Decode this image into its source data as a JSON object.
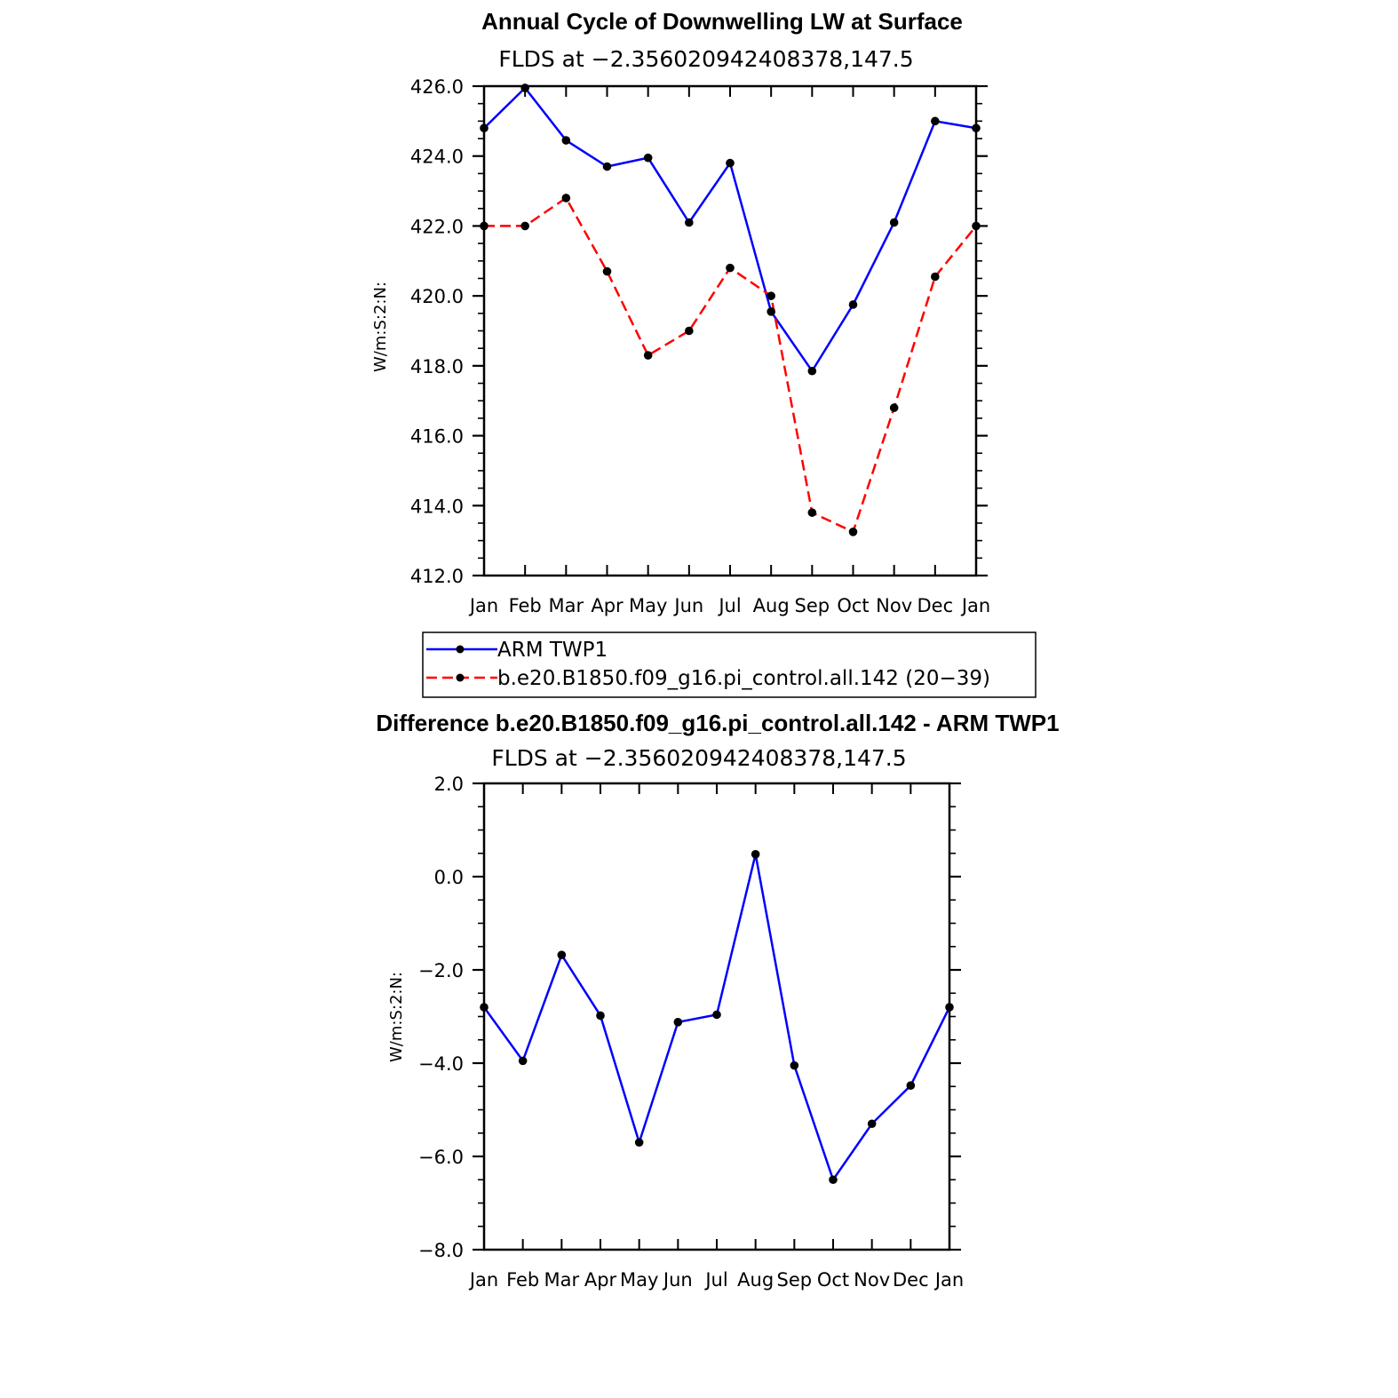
{
  "chart_data": [
    {
      "type": "line",
      "title": "Annual Cycle of Downwelling LW at Surface",
      "subtitle": "FLDS at −2.356020942408378,147.5",
      "ylabel": "W/m:S:2:N:",
      "categories": [
        "Jan",
        "Feb",
        "Mar",
        "Apr",
        "May",
        "Jun",
        "Jul",
        "Aug",
        "Sep",
        "Oct",
        "Nov",
        "Dec",
        "Jan"
      ],
      "ylim": [
        412.0,
        426.0
      ],
      "yticks": [
        "412.0",
        "414.0",
        "416.0",
        "418.0",
        "420.0",
        "422.0",
        "424.0",
        "426.0"
      ],
      "series": [
        {
          "name": "ARM TWP1",
          "color": "#0000ff",
          "dashed": false,
          "values": [
            424.8,
            425.95,
            424.45,
            423.7,
            423.95,
            422.1,
            423.8,
            419.55,
            417.85,
            419.75,
            422.1,
            425.0,
            424.8
          ]
        },
        {
          "name": "b.e20.B1850.f09_g16.pi_control.all.142 (20−39)",
          "color": "#ff0000",
          "dashed": true,
          "values": [
            422.0,
            422.0,
            422.8,
            420.7,
            418.3,
            419.0,
            420.8,
            420.0,
            413.8,
            413.25,
            416.8,
            420.55,
            422.0
          ]
        }
      ],
      "legend": "below"
    },
    {
      "type": "line",
      "title": "Difference b.e20.B1850.f09_g16.pi_control.all.142 - ARM TWP1",
      "subtitle": "FLDS at −2.356020942408378,147.5",
      "ylabel": "W/m:S:2:N:",
      "categories": [
        "Jan",
        "Feb",
        "Mar",
        "Apr",
        "May",
        "Jun",
        "Jul",
        "Aug",
        "Sep",
        "Oct",
        "Nov",
        "Dec",
        "Jan"
      ],
      "ylim": [
        -8.0,
        2.0
      ],
      "yticks": [
        "−8.0",
        "−6.0",
        "−4.0",
        "−2.0",
        "0.0",
        "2.0"
      ],
      "series": [
        {
          "color": "#0000ff",
          "dashed": false,
          "values": [
            -2.8,
            -3.95,
            -1.68,
            -2.98,
            -5.7,
            -3.12,
            -2.96,
            0.48,
            -4.05,
            -6.5,
            -5.3,
            -4.48,
            -2.8
          ]
        }
      ]
    }
  ]
}
